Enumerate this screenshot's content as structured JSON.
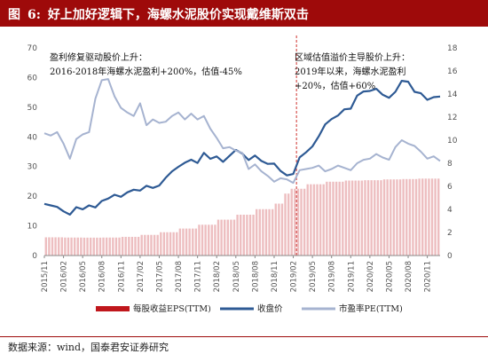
{
  "header": {
    "figure_label": "图",
    "figure_number": "6:",
    "title": "好上加好逻辑下，海螺水泥股价实现戴维斯双击"
  },
  "source_note": "数据来源：wind，国泰君安证券研究",
  "colors": {
    "header_bg": "#9e0a0a",
    "eps_bar": "#c0171c",
    "price_line": "#2e5a94",
    "pe_line": "#a6b3d0",
    "divider": "#d0322f"
  },
  "chart_data": {
    "type": "combo-bar-line",
    "x_tick_labels": [
      "2015/11",
      "2016/02",
      "2016/05",
      "2016/08",
      "2016/11",
      "2017/02",
      "2017/05",
      "2017/08",
      "2017/11",
      "2018/02",
      "2018/05",
      "2018/08",
      "2018/11",
      "2019/02",
      "2019/05",
      "2019/08",
      "2019/11",
      "2020/02",
      "2020/05",
      "2020/08",
      "2020/11"
    ],
    "y_left": {
      "min": 0,
      "max": 70,
      "ticks": [
        0,
        10,
        20,
        30,
        40,
        50,
        60,
        70
      ]
    },
    "y_right": {
      "min": 0,
      "max": 18,
      "ticks": [
        0,
        2,
        4,
        6,
        8,
        10,
        12,
        14,
        16,
        18
      ]
    },
    "x_range_months": [
      0,
      62
    ],
    "divider_month": 39.5,
    "series": [
      {
        "name": "每股收益EPS(TTM)",
        "type": "bar",
        "axis": "right",
        "points": [
          [
            0,
            1.58
          ],
          [
            3,
            1.56
          ],
          [
            6,
            1.55
          ],
          [
            9,
            1.56
          ],
          [
            12,
            1.62
          ],
          [
            15,
            1.79
          ],
          [
            18,
            2.02
          ],
          [
            21,
            2.34
          ],
          [
            24,
            2.67
          ],
          [
            27,
            3.11
          ],
          [
            30,
            3.54
          ],
          [
            33,
            4.02
          ],
          [
            36,
            4.5
          ],
          [
            37.5,
            5.37
          ],
          [
            38.5,
            5.79
          ],
          [
            41,
            6.18
          ],
          [
            44,
            6.4
          ],
          [
            47,
            6.5
          ],
          [
            50,
            6.53
          ],
          [
            53,
            6.6
          ],
          [
            56,
            6.63
          ],
          [
            58.5,
            6.67
          ],
          [
            62,
            6.69
          ]
        ]
      },
      {
        "name": "收盘价",
        "type": "line",
        "axis": "left",
        "points": [
          [
            0,
            17.4
          ],
          [
            1,
            16.9
          ],
          [
            2,
            16.4
          ],
          [
            3,
            14.9
          ],
          [
            4,
            13.8
          ],
          [
            5,
            16.3
          ],
          [
            6,
            15.6
          ],
          [
            7,
            16.9
          ],
          [
            8,
            16.2
          ],
          [
            9,
            18.4
          ],
          [
            10,
            19.2
          ],
          [
            11,
            20.5
          ],
          [
            12,
            19.8
          ],
          [
            13,
            21.3
          ],
          [
            14,
            22.2
          ],
          [
            15,
            21.9
          ],
          [
            16,
            23.5
          ],
          [
            17,
            22.8
          ],
          [
            18,
            23.6
          ],
          [
            19,
            26.2
          ],
          [
            20,
            28.4
          ],
          [
            21,
            29.9
          ],
          [
            22,
            31.3
          ],
          [
            23,
            32.3
          ],
          [
            24,
            31.2
          ],
          [
            25,
            34.6
          ],
          [
            26,
            32.6
          ],
          [
            27,
            33.4
          ],
          [
            28,
            31.6
          ],
          [
            29,
            33.6
          ],
          [
            30,
            35.6
          ],
          [
            31,
            34.4
          ],
          [
            32,
            32.2
          ],
          [
            33,
            33.7
          ],
          [
            34,
            31.9
          ],
          [
            35,
            30.9
          ],
          [
            36,
            31.0
          ],
          [
            37,
            28.5
          ],
          [
            38,
            27.0
          ],
          [
            39,
            27.5
          ],
          [
            40,
            33.1
          ],
          [
            41,
            34.8
          ],
          [
            42,
            36.8
          ],
          [
            43,
            40.2
          ],
          [
            44,
            44.2
          ],
          [
            45,
            46.0
          ],
          [
            46,
            47.2
          ],
          [
            47,
            49.3
          ],
          [
            48,
            49.5
          ],
          [
            49,
            53.9
          ],
          [
            50,
            55.3
          ],
          [
            51,
            55.5
          ],
          [
            52,
            56.2
          ],
          [
            53,
            54.2
          ],
          [
            54,
            53.2
          ],
          [
            55,
            55.2
          ],
          [
            56,
            58.9
          ],
          [
            57,
            58.6
          ],
          [
            58,
            55.2
          ],
          [
            59,
            54.7
          ],
          [
            60,
            52.5
          ],
          [
            61,
            53.4
          ],
          [
            62,
            53.6
          ]
        ]
      },
      {
        "name": "市盈率PE(TTM)",
        "type": "line",
        "axis": "right",
        "points": [
          [
            0,
            10.6
          ],
          [
            1,
            10.4
          ],
          [
            2,
            10.7
          ],
          [
            3,
            9.7
          ],
          [
            4,
            8.4
          ],
          [
            5,
            10.1
          ],
          [
            6,
            10.5
          ],
          [
            7,
            10.7
          ],
          [
            8,
            13.6
          ],
          [
            9,
            15.2
          ],
          [
            10,
            15.3
          ],
          [
            11,
            13.8
          ],
          [
            12,
            12.8
          ],
          [
            13,
            12.4
          ],
          [
            14,
            12.1
          ],
          [
            15,
            13.2
          ],
          [
            16,
            11.3
          ],
          [
            17,
            11.8
          ],
          [
            18,
            11.5
          ],
          [
            19,
            11.6
          ],
          [
            20,
            12.1
          ],
          [
            21,
            12.4
          ],
          [
            22,
            11.8
          ],
          [
            23,
            12.3
          ],
          [
            24,
            11.8
          ],
          [
            25,
            12.1
          ],
          [
            26,
            11.0
          ],
          [
            27,
            10.2
          ],
          [
            28,
            9.3
          ],
          [
            29,
            9.4
          ],
          [
            30,
            9.1
          ],
          [
            31,
            8.9
          ],
          [
            32,
            7.5
          ],
          [
            33,
            7.9
          ],
          [
            34,
            7.3
          ],
          [
            35,
            6.9
          ],
          [
            36,
            6.4
          ],
          [
            37,
            6.7
          ],
          [
            38,
            6.6
          ],
          [
            39,
            6.3
          ],
          [
            40,
            7.4
          ],
          [
            41,
            7.5
          ],
          [
            42,
            7.6
          ],
          [
            43,
            7.8
          ],
          [
            44,
            7.3
          ],
          [
            45,
            7.5
          ],
          [
            46,
            7.8
          ],
          [
            47,
            7.6
          ],
          [
            48,
            7.4
          ],
          [
            49,
            8.0
          ],
          [
            50,
            8.3
          ],
          [
            51,
            8.4
          ],
          [
            52,
            8.8
          ],
          [
            53,
            8.5
          ],
          [
            54,
            8.3
          ],
          [
            55,
            9.4
          ],
          [
            56,
            10.0
          ],
          [
            57,
            9.7
          ],
          [
            58,
            9.5
          ],
          [
            59,
            9.0
          ],
          [
            60,
            8.4
          ],
          [
            61,
            8.6
          ],
          [
            62,
            8.2
          ]
        ]
      }
    ],
    "annotations": [
      {
        "lines": [
          "盈利修复驱动股价上升：",
          "2016-2018年海螺水泥盈利+200%，估值-45%"
        ]
      },
      {
        "lines": [
          "区域估值溢价主导股价上升：",
          "2019年以来，海螺水泥盈利",
          "+20%，估值+60%"
        ]
      }
    ],
    "legend": {
      "position": "bottom"
    }
  }
}
